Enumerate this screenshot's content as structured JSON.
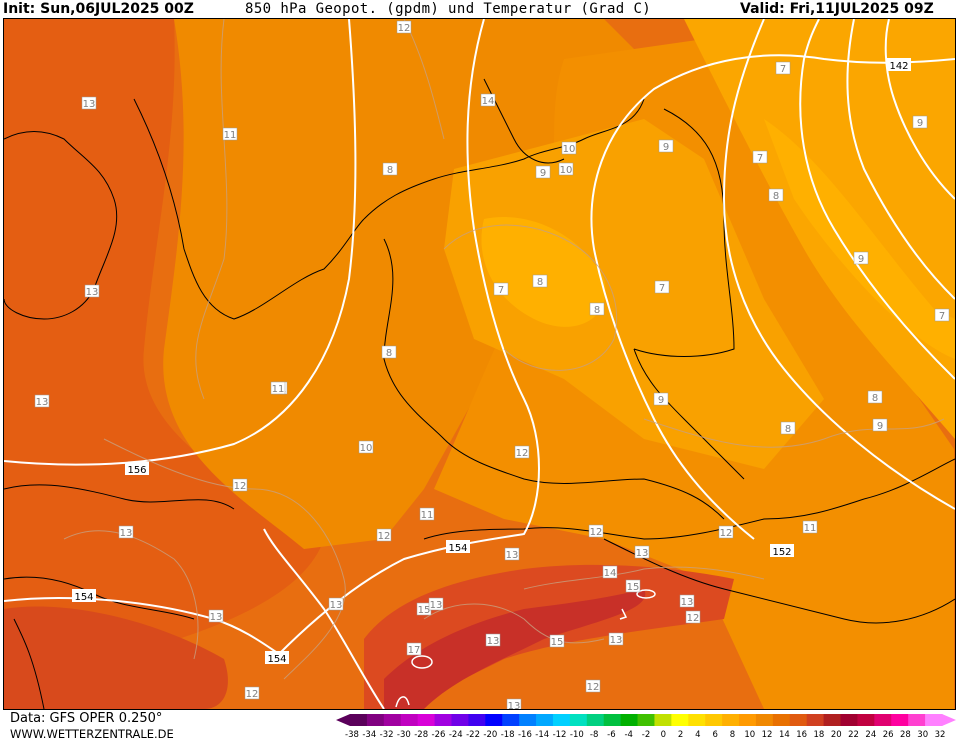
{
  "header": {
    "init": "Init: Sun,06JUL2025 00Z",
    "title": "850 hPa Geopot. (gpdm) und Temperatur (Grad C)",
    "valid": "Valid: Fri,11JUL2025 09Z"
  },
  "footer": {
    "data_source": "Data: GFS OPER 0.250°",
    "website": "WWW.WETTERZENTRALE.DE"
  },
  "colorbar": {
    "ticks": [
      "-38",
      "-34",
      "-32",
      "-30",
      "-28",
      "-26",
      "-24",
      "-22",
      "-20",
      "-18",
      "-16",
      "-14",
      "-12",
      "-10",
      "-8",
      "-6",
      "-4",
      "-2",
      "0",
      "2",
      "4",
      "6",
      "8",
      "10",
      "12",
      "14",
      "16",
      "18",
      "20",
      "22",
      "24",
      "26",
      "28",
      "30",
      "32"
    ],
    "colors": [
      "#5a005a",
      "#800080",
      "#a000a0",
      "#c000c0",
      "#d800d8",
      "#a000e0",
      "#7000e8",
      "#4000f0",
      "#0000ff",
      "#0040ff",
      "#0080ff",
      "#00a8ff",
      "#00d0ff",
      "#00e0c0",
      "#00d080",
      "#00c040",
      "#00b000",
      "#40c000",
      "#c0e000",
      "#ffff00",
      "#ffe000",
      "#ffc800",
      "#ffb000",
      "#ff9a00",
      "#f08800",
      "#e87000",
      "#e05a10",
      "#d04020",
      "#b02020",
      "#a00030",
      "#c00040",
      "#e00070",
      "#ff00a0",
      "#ff40d0",
      "#ff80ff"
    ]
  },
  "map": {
    "temperature_labels": [
      "12",
      "13",
      "11",
      "13",
      "13",
      "11",
      "12",
      "13",
      "12",
      "13",
      "13",
      "12",
      "13",
      "14",
      "10",
      "9",
      "9",
      "8",
      "8",
      "7",
      "8",
      "7",
      "8",
      "8",
      "9",
      "7",
      "9",
      "7",
      "7",
      "8",
      "9",
      "8",
      "9",
      "10",
      "10",
      "11",
      "11",
      "12",
      "13",
      "14",
      "15",
      "15",
      "13",
      "13",
      "12",
      "15",
      "13",
      "17",
      "12",
      "13",
      "11",
      "12",
      "13",
      "12"
    ],
    "geopotential_labels": [
      "142",
      "156",
      "154",
      "154",
      "154",
      "152"
    ],
    "isotherm_labels_white": [
      "11",
      "10",
      "10",
      "10",
      "11",
      "10",
      "9",
      "12",
      "10",
      "10",
      "11"
    ]
  }
}
